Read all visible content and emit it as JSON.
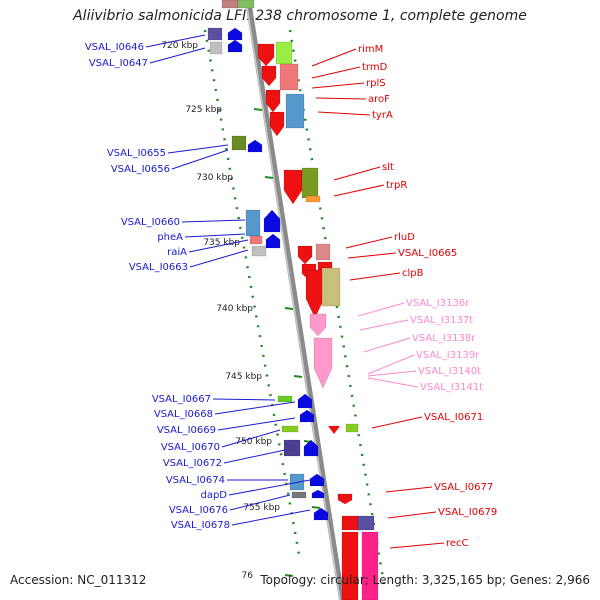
{
  "title": "Aliivibrio salmonicida LFI1238 chromosome 1, complete genome",
  "footer": {
    "accession": "Accession: NC_011312",
    "summary": "Topology: circular; Length: 3,325,165 bp; Genes: 2,966"
  },
  "colors": {
    "backbone": "#8a8a8a",
    "tick": "#228b22",
    "left_label": "#1a1ad0",
    "right_label": "#e00000",
    "rna_label": "#ff88cc"
  },
  "kbp_ticks": [
    "720 kbp",
    "725 kbp",
    "730 kbp",
    "735 kbp",
    "740 kbp",
    "745 kbp",
    "750 kbp",
    "755 kbp",
    "76"
  ],
  "left_labels": [
    "VSAL_I0646",
    "VSAL_I0647",
    "VSAL_I0655",
    "VSAL_I0656",
    "VSAL_I0660",
    "pheA",
    "raiA",
    "VSAL_I0663",
    "VSAL_I0667",
    "VSAL_I0668",
    "VSAL_I0669",
    "VSAL_I0670",
    "VSAL_I0672",
    "VSAL_I0674",
    "dapD",
    "VSAL_I0676",
    "VSAL_I0678"
  ],
  "right_labels": [
    "rimM",
    "trmD",
    "rplS",
    "aroF",
    "tyrA",
    "slt",
    "trpR",
    "rluD",
    "VSAL_I0665",
    "clpB",
    "VSAL_I0671",
    "VSAL_I0677",
    "VSAL_I0679",
    "recC"
  ],
  "rna_labels": [
    "VSAL_I3136r",
    "VSAL_I3137t",
    "VSAL_I3138r",
    "VSAL_I3139r",
    "VSAL_I3140t",
    "VSAL_I3141t"
  ]
}
